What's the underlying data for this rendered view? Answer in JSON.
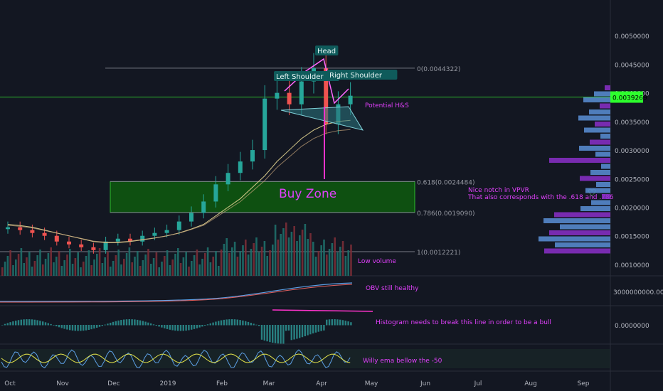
{
  "chart_data": {
    "type": "candlestick",
    "title": "",
    "price_axis": {
      "ticks": [
        "0.0050000",
        "0.0045000",
        "0.0040000",
        "0.0035000",
        "0.0030000",
        "0.0025000",
        "0.0020000",
        "0.0015000",
        "0.0010000"
      ],
      "tick_values": [
        0.005,
        0.0045,
        0.004,
        0.0035,
        0.003,
        0.0025,
        0.002,
        0.0015,
        0.001
      ],
      "range": [
        0.0008,
        0.0055
      ],
      "current_price": "0.0039269",
      "current_price_value": 0.0039269
    },
    "obv_axis_label": "3000000000.0000000",
    "histogram_axis_label": "0.0000000",
    "time_axis": [
      "Oct",
      "Nov",
      "Dec",
      "2019",
      "Feb",
      "Mar",
      "Apr",
      "May",
      "Jun",
      "Jul",
      "Aug",
      "Sep"
    ],
    "fib_levels": [
      {
        "label": "0(0.0044322)",
        "value": 0.0044322
      },
      {
        "label": "0.618(0.0024484)",
        "value": 0.0024484
      },
      {
        "label": "0.786(0.0019090)",
        "value": 0.001909
      },
      {
        "label": "1(0.0012221)",
        "value": 0.0012221
      }
    ],
    "price_series": {
      "description_units": "price, weekly index from Oct",
      "x": [
        0,
        1,
        2,
        3,
        4,
        5,
        6,
        7,
        8,
        9,
        10,
        11,
        12,
        13,
        14,
        15,
        16,
        17,
        18,
        19,
        20,
        21,
        22,
        23,
        24,
        25,
        26,
        27,
        28
      ],
      "close": [
        0.00165,
        0.0016,
        0.00155,
        0.0015,
        0.0014,
        0.00135,
        0.0013,
        0.00125,
        0.0014,
        0.00145,
        0.0014,
        0.0015,
        0.00155,
        0.0016,
        0.00175,
        0.0019,
        0.0021,
        0.0024,
        0.0026,
        0.0028,
        0.003,
        0.0039,
        0.004,
        0.0038,
        0.0042,
        0.00443,
        0.00345,
        0.0038,
        0.00395
      ],
      "sma": [
        0.0017,
        0.00168,
        0.00165,
        0.0016,
        0.00155,
        0.0015,
        0.00145,
        0.0014,
        0.00138,
        0.00138,
        0.0014,
        0.00143,
        0.00146,
        0.0015,
        0.00155,
        0.00162,
        0.0017,
        0.00185,
        0.002,
        0.00215,
        0.00235,
        0.00255,
        0.0028,
        0.003,
        0.0032,
        0.00335,
        0.00345,
        0.0035,
        0.00352
      ]
    },
    "annotations": [
      {
        "text": "Head"
      },
      {
        "text": "Left Shoulder"
      },
      {
        "text": "Right Shoulder"
      },
      {
        "text": "Potential H&S"
      },
      {
        "text": "Buy Zone"
      },
      {
        "text": "Nice notch in VPVR"
      },
      {
        "text": "That also corresponds with the .618 and .786"
      },
      {
        "text": "♡"
      },
      {
        "text": "Low volume"
      },
      {
        "text": "OBV still healthy"
      },
      {
        "text": "Histogram needs to break this line in order to be a bull"
      },
      {
        "text": "Willy ema bellow the -50"
      }
    ],
    "colors": {
      "background": "#131722",
      "up": "#26a69a",
      "down": "#ef5350",
      "buy_zone": "#1f7a1f",
      "annotation": "#e040fb",
      "fib_line": "#787b86",
      "price_tag": "#2dff2d",
      "vpvr_up": "#5b8fd6",
      "vpvr_down": "#8b2fc9"
    },
    "grid": true,
    "legend": "none"
  }
}
